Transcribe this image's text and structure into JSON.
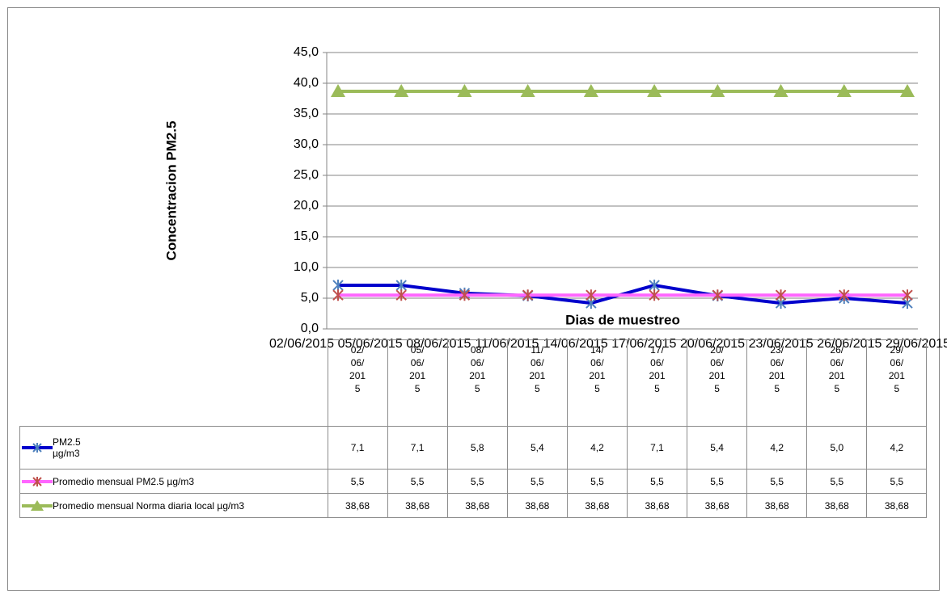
{
  "chart_data": {
    "type": "line",
    "y_label": "Concentracion  PM2.5",
    "x_label": "Dias de muestreo",
    "categories": [
      "02/06/2015",
      "05/06/2015",
      "08/06/2015",
      "11/06/2015",
      "14/06/2015",
      "17/06/2015",
      "20/06/2015",
      "23/06/2015",
      "26/06/2015",
      "29/06/2015"
    ],
    "ylim": [
      0,
      45
    ],
    "yticks": [
      {
        "value": 0,
        "label": "0,0"
      },
      {
        "value": 5,
        "label": "5,0"
      },
      {
        "value": 10,
        "label": "10,0"
      },
      {
        "value": 15,
        "label": "15,0"
      },
      {
        "value": 20,
        "label": "20,0"
      },
      {
        "value": 25,
        "label": "25,0"
      },
      {
        "value": 30,
        "label": "30,0"
      },
      {
        "value": 35,
        "label": "35,0"
      },
      {
        "value": 40,
        "label": "40,0"
      },
      {
        "value": 45,
        "label": "45,0"
      }
    ],
    "grid": true,
    "series": [
      {
        "name": "PM2.5 µg/m3",
        "color": "#0000cc",
        "marker": "asterisk",
        "marker_color": "#4f81bd",
        "values": [
          7.1,
          7.1,
          5.8,
          5.4,
          4.2,
          7.1,
          5.4,
          4.2,
          5.0,
          4.2
        ],
        "value_labels": [
          "7,1",
          "7,1",
          "5,8",
          "5,4",
          "4,2",
          "7,1",
          "5,4",
          "4,2",
          "5,0",
          "4,2"
        ]
      },
      {
        "name": "Promedio mensual PM2.5 µg/m3",
        "color": "#ff66ff",
        "marker": "asterisk",
        "marker_color": "#c0504d",
        "values": [
          5.5,
          5.5,
          5.5,
          5.5,
          5.5,
          5.5,
          5.5,
          5.5,
          5.5,
          5.5
        ],
        "value_labels": [
          "5,5",
          "5,5",
          "5,5",
          "5,5",
          "5,5",
          "5,5",
          "5,5",
          "5,5",
          "5,5",
          "5,5"
        ]
      },
      {
        "name": "Promedio mensual Norma diaria local µg/m3",
        "color": "#9bbb59",
        "marker": "triangle",
        "marker_color": "#9bbb59",
        "values": [
          38.68,
          38.68,
          38.68,
          38.68,
          38.68,
          38.68,
          38.68,
          38.68,
          38.68,
          38.68
        ],
        "value_labels": [
          "38,68",
          "38,68",
          "38,68",
          "38,68",
          "38,68",
          "38,68",
          "38,68",
          "38,68",
          "38,68",
          "38,68"
        ]
      }
    ]
  }
}
